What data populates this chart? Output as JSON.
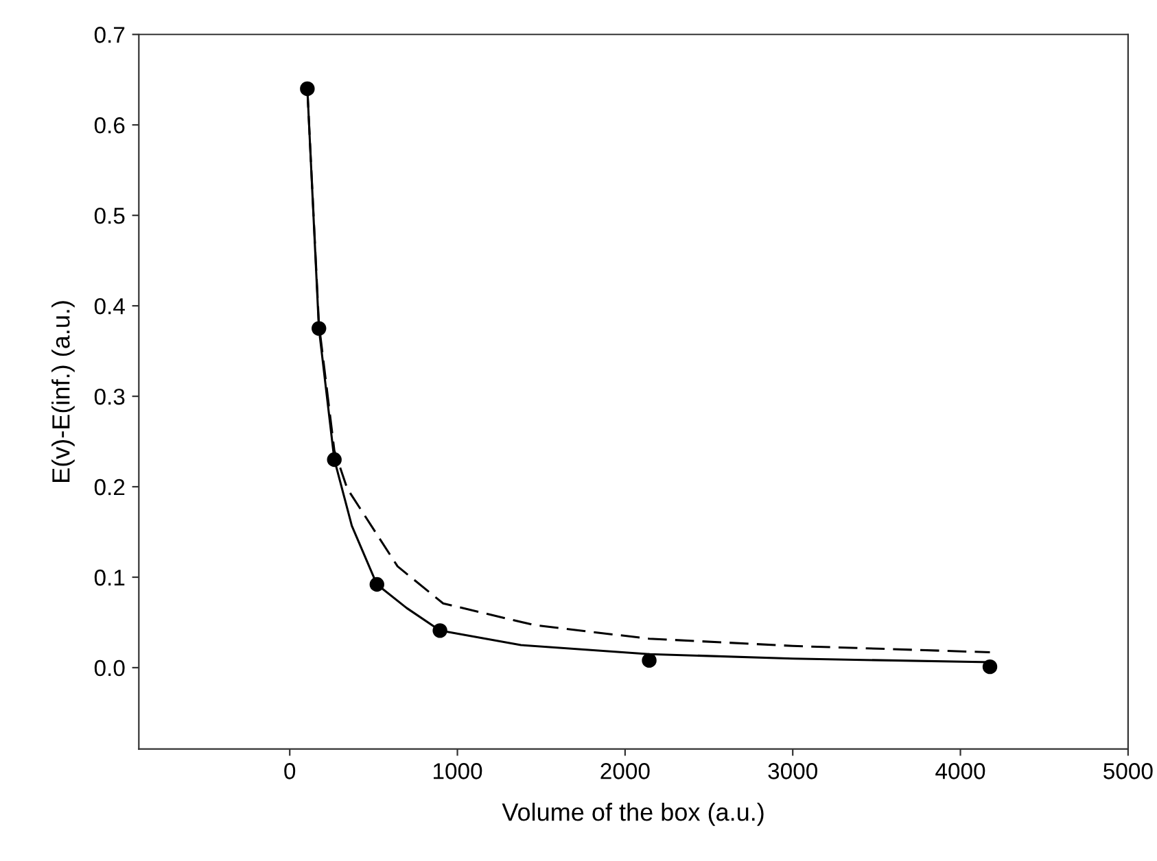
{
  "chart_data": {
    "type": "scatter",
    "xlabel": "Volume of the box (a.u.)",
    "ylabel": "E(v)-E(inf.) (a.u.)",
    "xlim": [
      -900,
      5000
    ],
    "xticks": [
      0,
      1000,
      2000,
      3000,
      4000,
      5000
    ],
    "ylim": [
      -0.09,
      0.7
    ],
    "yticks": [
      {
        "value": 0,
        "label": "0.0"
      },
      0.1,
      0.2,
      0.3,
      0.4,
      0.5,
      0.6,
      0.7
    ],
    "grid": false,
    "legend": false,
    "series": [
      {
        "type": "line",
        "line_style": "dashed",
        "marker": "none",
        "color": "#000000",
        "x": [
          105,
          174,
          266,
          343,
          643,
          915,
          1460,
          2144,
          3000,
          4176
        ],
        "values": [
          0.64,
          0.38,
          0.24,
          0.198,
          0.112,
          0.071,
          0.047,
          0.032,
          0.024,
          0.017
        ]
      },
      {
        "type": "line",
        "line_style": "solid",
        "marker": "none",
        "color": "#000000",
        "x": [
          105,
          174,
          266,
          370,
          520,
          697,
          896,
          1379,
          2144,
          3000,
          4176
        ],
        "values": [
          0.64,
          0.375,
          0.23,
          0.157,
          0.092,
          0.066,
          0.041,
          0.025,
          0.015,
          0.01,
          0.006
        ]
      },
      {
        "marker": "circle",
        "color": "#000000",
        "x": [
          105,
          174,
          266,
          520,
          896,
          2144,
          4176
        ],
        "values": [
          0.64,
          0.375,
          0.23,
          0.092,
          0.041,
          0.008,
          0.001
        ]
      }
    ]
  }
}
